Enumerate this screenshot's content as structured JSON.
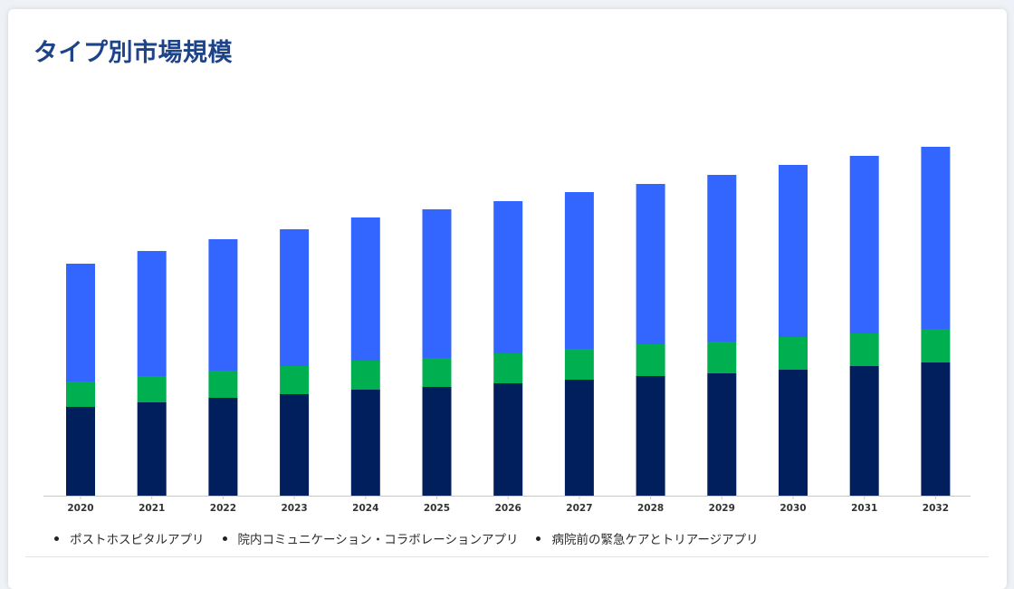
{
  "title": "タイプ別市場規模",
  "legend": [
    {
      "label": "ポストホスピタルアプリ"
    },
    {
      "label": "院内コミュニケーション・コラボレーションアプリ"
    },
    {
      "label": "病院前の緊急ケアとトリアージアプリ"
    }
  ],
  "chart_data": {
    "type": "bar",
    "stacked": true,
    "categories": [
      "2020",
      "2021",
      "2022",
      "2023",
      "2024",
      "2025",
      "2026",
      "2027",
      "2028",
      "2029",
      "2030",
      "2031",
      "2032"
    ],
    "series": [
      {
        "name": "ポストホスピタルアプリ",
        "color": "#001f5c",
        "values": [
          98,
          103,
          108,
          112,
          117,
          120,
          124,
          128,
          132,
          135,
          139,
          143,
          147
        ]
      },
      {
        "name": "院内コミュニケーション・コラボレーションアプリ",
        "color": "#00b050",
        "values": [
          28,
          29,
          30,
          31,
          32,
          32,
          33,
          34,
          35,
          35,
          36,
          36,
          37
        ]
      },
      {
        "name": "病院前の緊急ケアとトリアージアプリ",
        "color": "#3366ff",
        "values": [
          130,
          138,
          145,
          151,
          158,
          164,
          168,
          173,
          177,
          184,
          190,
          196,
          201
        ]
      }
    ],
    "ylim": [
      0,
      400
    ],
    "grid": false
  }
}
